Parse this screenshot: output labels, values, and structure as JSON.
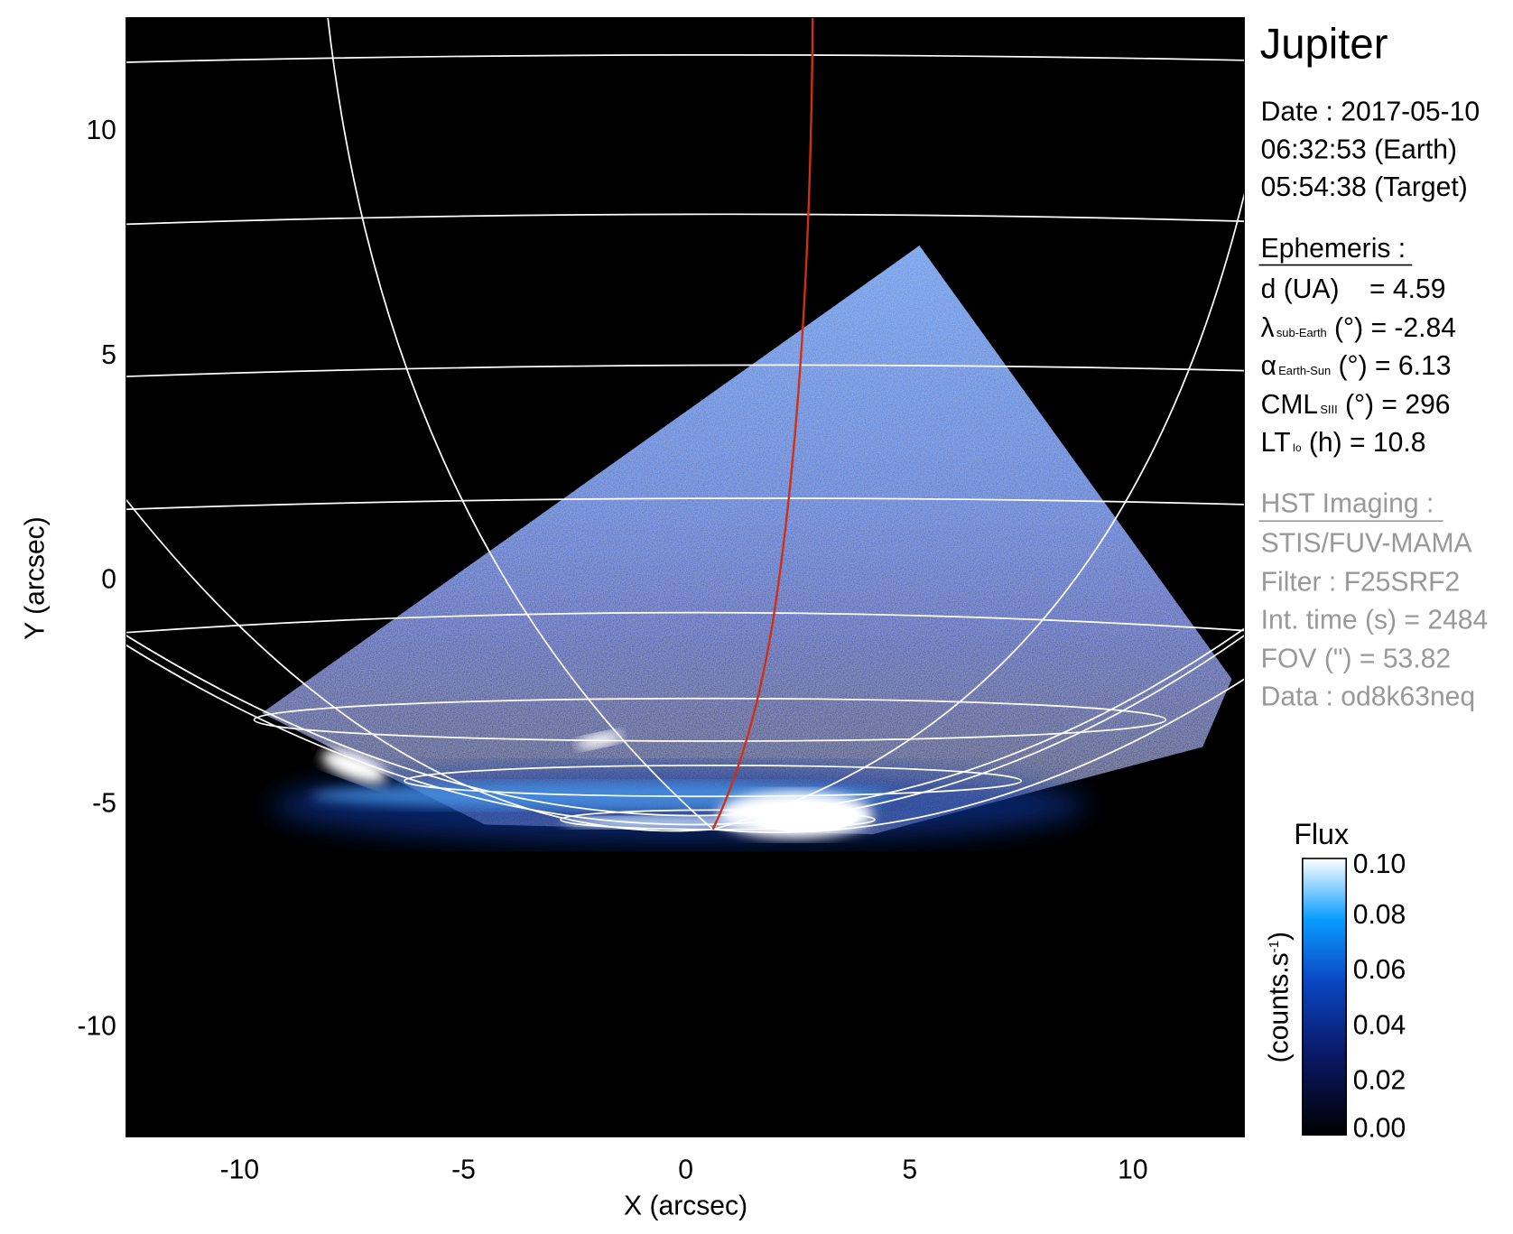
{
  "chart_data": {
    "type": "heatmap",
    "xlabel": "X (arcsec)",
    "ylabel": "Y (arcsec)",
    "xlim": [
      -12.5,
      12.5
    ],
    "ylim": [
      -12.5,
      12.5
    ],
    "xticks": [
      "-10",
      "-5",
      "0",
      "5",
      "10"
    ],
    "yticks": [
      "10",
      "5",
      "0",
      "-5",
      "-10"
    ],
    "colorbar": {
      "title": "Flux",
      "label": "(counts.s",
      "label_sup": "-1",
      "label_close": ")",
      "range": [
        0.0,
        0.1
      ],
      "ticks": [
        "0.10",
        "0.08",
        "0.06",
        "0.04",
        "0.02",
        "0.00"
      ],
      "colors": [
        "#000000",
        "#0a1a6a",
        "#0a45c0",
        "#0a9cff",
        "#ffffff"
      ]
    },
    "grid_color": "#ffffff",
    "trace_color": "#d03010"
  },
  "info": {
    "title": "Jupiter",
    "date": "Date : 2017-05-10",
    "time_earth": "06:32:53 (Earth)",
    "time_target": "05:54:38 (Target)",
    "ephemeris_heading": "Ephemeris :",
    "d": "d (UA)    = 4.59",
    "lambda_sym": "λ",
    "lambda_sub": "sub-Earth",
    "lambda_val": " (°) = -2.84",
    "alpha_sym": "α",
    "alpha_sub": "Earth-Sun",
    "alpha_val": " (°) = 6.13",
    "cml_sym": "CML",
    "cml_sub": "SIII",
    "cml_val": " (°) = 296",
    "lt_sym": "LT",
    "lt_sub": "Io",
    "lt_val": " (h) = 10.8",
    "hst_heading": "HST Imaging :",
    "instrument": "STIS/FUV-MAMA",
    "filter": "Filter : F25SRF2",
    "int_time": "Int. time (s) = 2484",
    "fov": "FOV (\") = 53.82",
    "data_id": "Data : od8k63neq"
  }
}
